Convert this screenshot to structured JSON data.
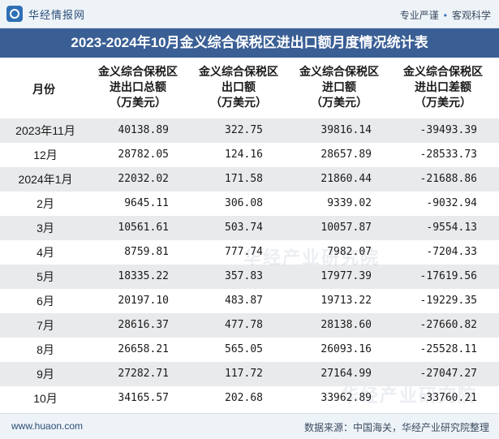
{
  "brand": {
    "name": "华经情报网"
  },
  "tagline": {
    "left": "专业严谨",
    "right": "客观科学"
  },
  "title": "2023-2024年10月金义综合保税区进出口额月度情况统计表",
  "headers": {
    "month": "月份",
    "c1": [
      "金义综合保税区",
      "进出口总额",
      "（万美元）"
    ],
    "c2": [
      "金义综合保税区",
      "出口额",
      "（万美元）"
    ],
    "c3": [
      "金义综合保税区",
      "进口额",
      "（万美元）"
    ],
    "c4": [
      "金义综合保税区",
      "进出口差额",
      "（万美元）"
    ]
  },
  "rows": [
    {
      "month": "2023年11月",
      "total": "40138.89",
      "export": "322.75",
      "import": "39816.14",
      "balance": "-39493.39"
    },
    {
      "month": "12月",
      "total": "28782.05",
      "export": "124.16",
      "import": "28657.89",
      "balance": "-28533.73"
    },
    {
      "month": "2024年1月",
      "total": "22032.02",
      "export": "171.58",
      "import": "21860.44",
      "balance": "-21688.86"
    },
    {
      "month": "2月",
      "total": "9645.11",
      "export": "306.08",
      "import": "9339.02",
      "balance": "-9032.94"
    },
    {
      "month": "3月",
      "total": "10561.61",
      "export": "503.74",
      "import": "10057.87",
      "balance": "-9554.13"
    },
    {
      "month": "4月",
      "total": "8759.81",
      "export": "777.74",
      "import": "7982.07",
      "balance": "-7204.33"
    },
    {
      "month": "5月",
      "total": "18335.22",
      "export": "357.83",
      "import": "17977.39",
      "balance": "-17619.56"
    },
    {
      "month": "6月",
      "total": "20197.10",
      "export": "483.87",
      "import": "19713.22",
      "balance": "-19229.35"
    },
    {
      "month": "7月",
      "total": "28616.37",
      "export": "477.78",
      "import": "28138.60",
      "balance": "-27660.82"
    },
    {
      "month": "8月",
      "total": "26658.21",
      "export": "565.05",
      "import": "26093.16",
      "balance": "-25528.11"
    },
    {
      "month": "9月",
      "total": "27282.71",
      "export": "117.72",
      "import": "27164.99",
      "balance": "-27047.27"
    },
    {
      "month": "10月",
      "total": "34165.57",
      "export": "202.68",
      "import": "33962.89",
      "balance": "-33760.21"
    }
  ],
  "watermark": "华经产业研究院",
  "footer": {
    "site": "www.huaon.com",
    "source": "数据来源：中国海关，华经产业研究院整理"
  },
  "colors": {
    "title_band": "#3a5f95",
    "alt_row": "#e9eaec",
    "bar_bg": "#eef3f8"
  }
}
